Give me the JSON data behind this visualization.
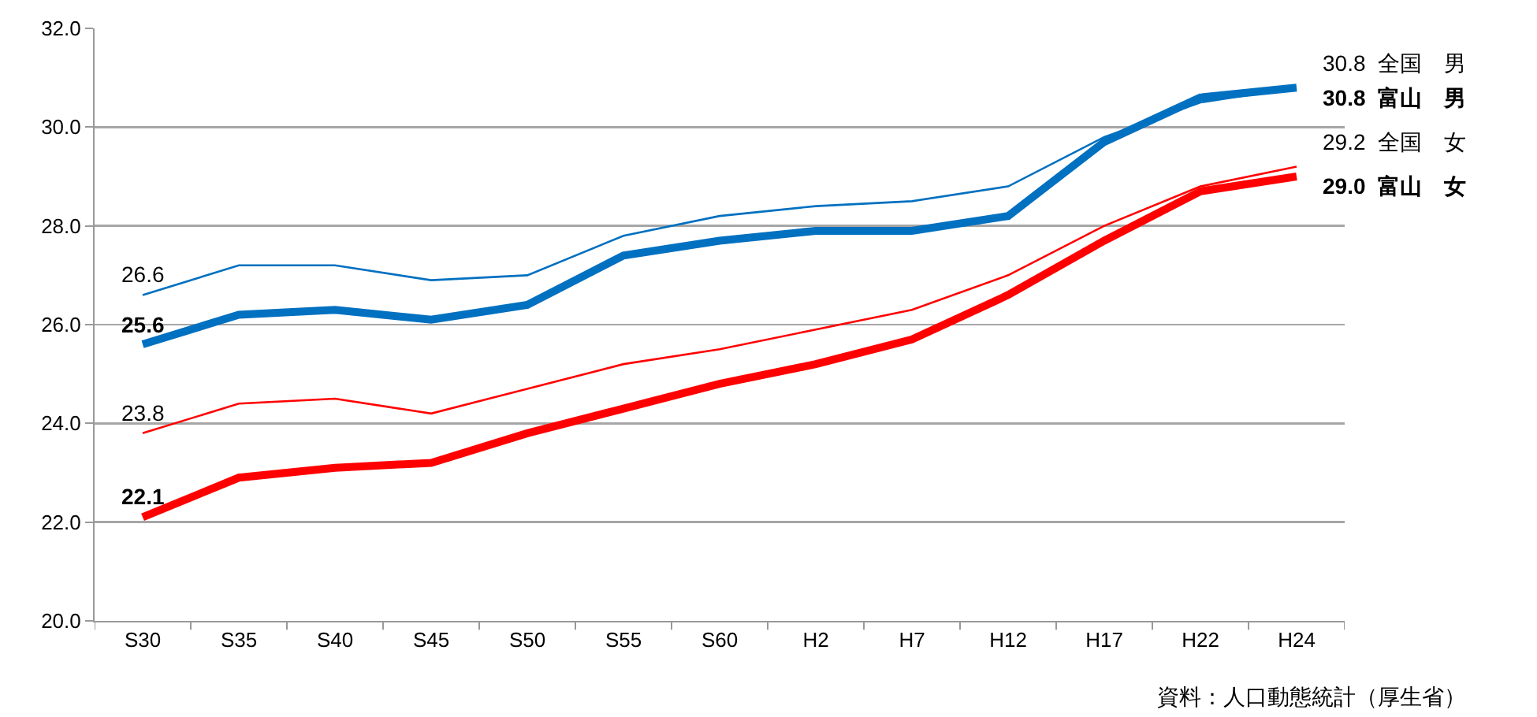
{
  "chart_data": {
    "type": "line",
    "categories": [
      "S30",
      "S35",
      "S40",
      "S45",
      "S50",
      "S55",
      "S60",
      "H2",
      "H7",
      "H12",
      "H17",
      "H22",
      "H24"
    ],
    "series": [
      {
        "name": "全国　男",
        "color": "#0070c0",
        "values": [
          26.6,
          27.2,
          27.2,
          26.9,
          27.0,
          27.8,
          28.2,
          28.4,
          28.5,
          28.8,
          29.8,
          30.5,
          30.8
        ],
        "value_labels": [
          "26.6",
          null,
          null,
          null,
          null,
          null,
          null,
          null,
          null,
          null,
          null,
          null,
          "30.8"
        ]
      },
      {
        "name": "富山　男",
        "color": "#0070c0",
        "values": [
          25.6,
          26.2,
          26.3,
          26.1,
          26.4,
          27.4,
          27.7,
          27.9,
          27.9,
          28.2,
          29.7,
          30.6,
          30.8
        ],
        "value_labels": [
          "25.6",
          null,
          null,
          null,
          null,
          null,
          null,
          null,
          null,
          null,
          null,
          null,
          "30.8"
        ]
      },
      {
        "name": "全国　女",
        "color": "#ff0000",
        "values": [
          23.8,
          24.4,
          24.5,
          24.2,
          24.7,
          25.2,
          25.5,
          25.9,
          26.3,
          27.0,
          28.0,
          28.8,
          29.2
        ],
        "value_labels": [
          "23.8",
          null,
          null,
          null,
          null,
          null,
          null,
          null,
          null,
          null,
          null,
          null,
          "29.2"
        ]
      },
      {
        "name": "富山　女",
        "color": "#ff0000",
        "values": [
          22.1,
          22.9,
          23.1,
          23.2,
          23.8,
          24.3,
          24.8,
          25.2,
          25.7,
          26.6,
          27.7,
          28.7,
          29.0
        ],
        "value_labels": [
          "22.1",
          null,
          null,
          null,
          null,
          null,
          null,
          null,
          null,
          null,
          null,
          null,
          "29.0"
        ]
      }
    ],
    "ylim": [
      20,
      32
    ],
    "yticks": [
      {
        "value": 20,
        "label": "20.0"
      },
      {
        "value": 22,
        "label": "22.0"
      },
      {
        "value": 24,
        "label": "24.0"
      },
      {
        "value": 26,
        "label": "26.0"
      },
      {
        "value": 28,
        "label": "28.0"
      },
      {
        "value": 30,
        "label": "30.0"
      },
      {
        "value": 32,
        "label": "32.0"
      }
    ],
    "grid": "y",
    "legend": false,
    "marker": "none",
    "line_style": "solid",
    "annotations": [
      "資料：人口動態統計（厚生省）"
    ]
  }
}
